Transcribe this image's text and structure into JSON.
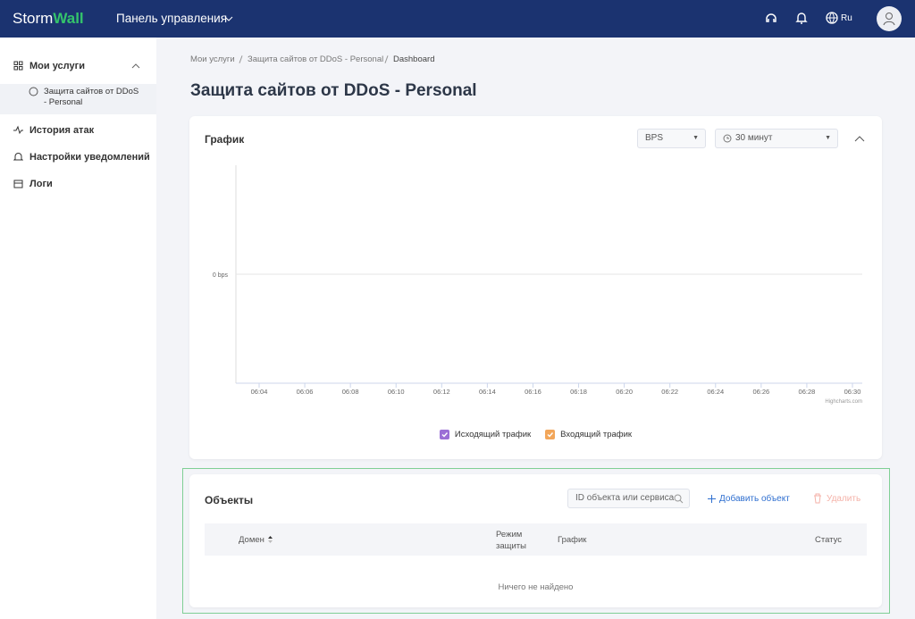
{
  "header": {
    "logo_a": "Storm",
    "logo_b": "Wall",
    "menu": "Панель управления",
    "lang": "Ru"
  },
  "sidebar": {
    "items": [
      "Мои услуги",
      "Защита сайтов от DDoS - Personal",
      "История атак",
      "Настройки уведомлений",
      "Логи"
    ]
  },
  "breadcrumbs": [
    "Мои услуги",
    "Защита сайтов от DDoS - Personal",
    "Dashboard"
  ],
  "title": "Защита сайтов от DDoS - Personal",
  "graph_card": {
    "title": "График",
    "unit_select": "BPS",
    "period_select": "30 минут",
    "chart": {
      "type": "line",
      "ylim": [
        -1,
        1
      ],
      "yticks": [
        {
          "value": 0,
          "label": "0 bps"
        }
      ],
      "xticks": [
        "06:04",
        "06:06",
        "06:08",
        "06:10",
        "06:12",
        "06:14",
        "06:16",
        "06:18",
        "06:20",
        "06:22",
        "06:24",
        "06:26",
        "06:28",
        "06:30"
      ],
      "credit": "Highcharts.com",
      "grid": true,
      "series": [
        {
          "name": "Исходящий трафик",
          "color": "#9b6fd6",
          "values": []
        },
        {
          "name": "Входящий трафик",
          "color": "#f2a65a",
          "values": []
        }
      ]
    }
  },
  "objects_card": {
    "title": "Объекты",
    "search_placeholder": "ID объекта или сервиса",
    "add": "Добавить объект",
    "delete": "Удалить",
    "columns": [
      "Домен",
      "Режим защиты",
      "График",
      "Статус"
    ],
    "empty": "Ничего не найдено"
  }
}
